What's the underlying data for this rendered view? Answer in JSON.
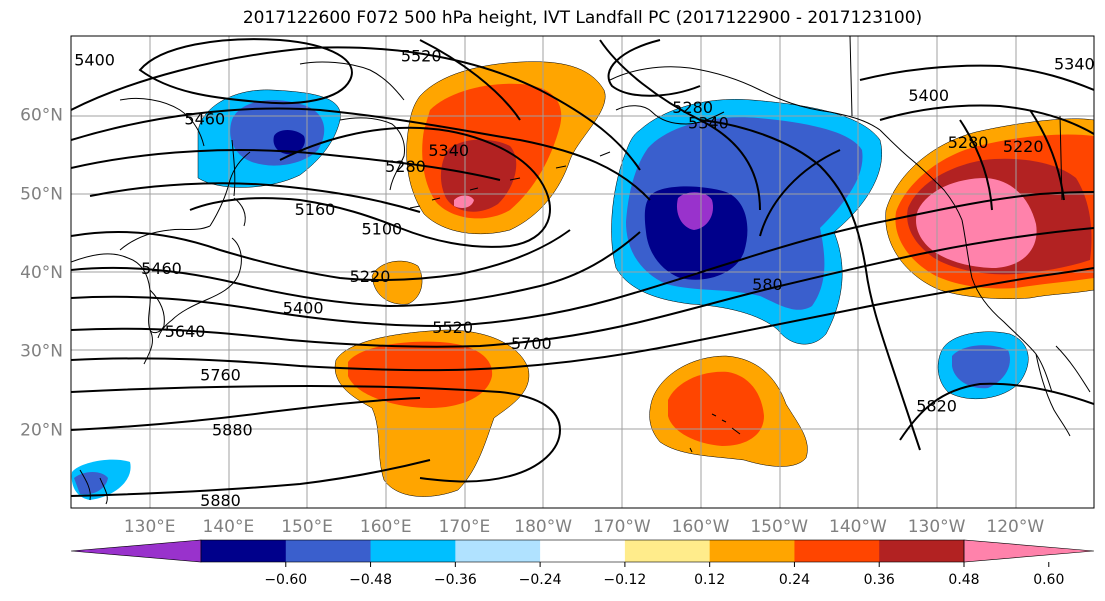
{
  "title": "2017122600 F072 500 hPa height, IVT Landfall PC (2017122900 - 2017123100)",
  "map": {
    "lon_range": [
      120,
      250
    ],
    "lat_range": [
      10,
      70
    ],
    "lat_labels": [
      {
        "lat": 60,
        "text": "60°N"
      },
      {
        "lat": 50,
        "text": "50°N"
      },
      {
        "lat": 40,
        "text": "40°N"
      },
      {
        "lat": 30,
        "text": "30°N"
      },
      {
        "lat": 20,
        "text": "20°N"
      }
    ],
    "lon_labels": [
      {
        "lon": 130,
        "text": "130°E"
      },
      {
        "lon": 140,
        "text": "140°E"
      },
      {
        "lon": 150,
        "text": "150°E"
      },
      {
        "lon": 160,
        "text": "160°E"
      },
      {
        "lon": 170,
        "text": "170°E"
      },
      {
        "lon": 180,
        "text": "180°W"
      },
      {
        "lon": 190,
        "text": "170°W"
      },
      {
        "lon": 200,
        "text": "160°W"
      },
      {
        "lon": 210,
        "text": "150°W"
      },
      {
        "lon": 220,
        "text": "140°W"
      },
      {
        "lon": 230,
        "text": "130°W"
      },
      {
        "lon": 240,
        "text": "120°W"
      }
    ],
    "contour_labels": [
      {
        "text": "5400",
        "lon": 123,
        "lat": 67
      },
      {
        "text": "5520",
        "lon": 164.5,
        "lat": 67.5
      },
      {
        "text": "5460",
        "lon": 137,
        "lat": 59.5
      },
      {
        "text": "5340",
        "lon": 168,
        "lat": 55.5
      },
      {
        "text": "5280",
        "lon": 162.5,
        "lat": 53.5
      },
      {
        "text": "5160",
        "lon": 151,
        "lat": 48
      },
      {
        "text": "5100",
        "lon": 159.5,
        "lat": 45.5
      },
      {
        "text": "5460",
        "lon": 131.5,
        "lat": 40.5
      },
      {
        "text": "5220",
        "lon": 158,
        "lat": 39.5
      },
      {
        "text": "5400",
        "lon": 149.5,
        "lat": 35.5
      },
      {
        "text": "5640",
        "lon": 134.5,
        "lat": 32.5
      },
      {
        "text": "5520",
        "lon": 168.5,
        "lat": 33
      },
      {
        "text": "5700",
        "lon": 178.5,
        "lat": 31
      },
      {
        "text": "5760",
        "lon": 139,
        "lat": 27
      },
      {
        "text": "5880",
        "lon": 140.5,
        "lat": 20
      },
      {
        "text": "5880",
        "lon": 139,
        "lat": 11
      },
      {
        "text": "5280",
        "lon": 199,
        "lat": 61
      },
      {
        "text": "5340",
        "lon": 201,
        "lat": 59
      },
      {
        "text": "580",
        "lon": 208.5,
        "lat": 38.5
      },
      {
        "text": "5400",
        "lon": 229,
        "lat": 62.5
      },
      {
        "text": "5340",
        "lon": 247.5,
        "lat": 66.5
      },
      {
        "text": "5280",
        "lon": 234,
        "lat": 56.5
      },
      {
        "text": "5220",
        "lon": 241,
        "lat": 56
      },
      {
        "text": "5820",
        "lon": 230,
        "lat": 23
      }
    ]
  },
  "colorbar": {
    "colors": [
      "#9932cc",
      "#00008b",
      "#3a5fcd",
      "#00bfff",
      "#b0e2ff",
      "#ffffff",
      "#ffec8b",
      "#ffa500",
      "#ff4500",
      "#b22222",
      "#ff82ab"
    ],
    "ticks": [
      "−0.60",
      "−0.48",
      "−0.36",
      "−0.24",
      "−0.12",
      "0.12",
      "0.24",
      "0.36",
      "0.48",
      "0.60"
    ]
  }
}
